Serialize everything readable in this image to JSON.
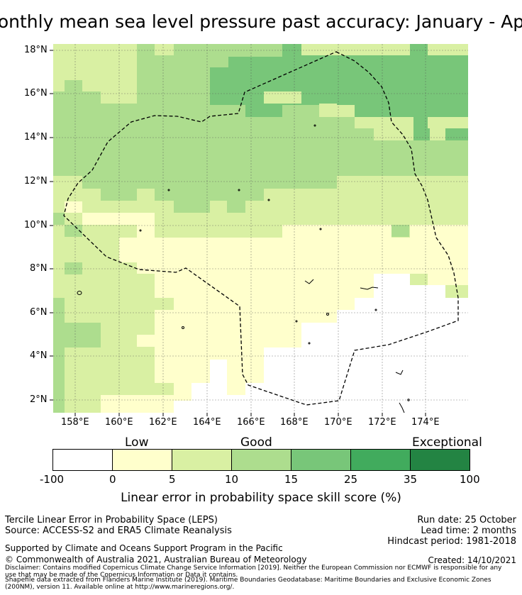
{
  "title": "onthly mean sea level pressure past accuracy: January - Ap",
  "map": {
    "lat_ticks": [
      "18°N",
      "16°N",
      "14°N",
      "12°N",
      "10°N",
      "8°N",
      "6°N",
      "4°N",
      "2°N"
    ],
    "lon_ticks": [
      "158°E",
      "160°E",
      "162°E",
      "164°E",
      "166°E",
      "168°E",
      "170°E",
      "172°E",
      "174°E"
    ],
    "region_boundary": "dashed outline of exclusive economic zone"
  },
  "colorbar": {
    "categories": [
      "Low",
      "Good",
      "Exceptional"
    ],
    "ticks": [
      "-100",
      "0",
      "5",
      "10",
      "15",
      "25",
      "35",
      "100"
    ],
    "colors": [
      "#ffffff",
      "#ffffcc",
      "#d9f0a3",
      "#addd8e",
      "#78c679",
      "#41ab5d",
      "#238443"
    ],
    "label": "Linear error in probability space skill score (%)"
  },
  "info": {
    "left_line1": "Tercile Linear Error in Probability Space (LEPS)",
    "left_line2": "Source: ACCESS-S2 and ERA5 Climate Reanalysis",
    "right_line1": "Run date: 25 October",
    "right_line2": "Lead time: 2 months",
    "right_line3": "Hindcast period: 1981-2018",
    "support": "Supported by Climate and Oceans Support Program in the Pacific",
    "copyright": "© Commonwealth of Australia 2021, Australian Bureau of Meteorology",
    "created": "Created: 14/10/2021",
    "disclaimer1": "Disclaimer: Contains modified Copernicus Climate Change Service Information [2019]. Neither the European Commission nor ECMWF is responsible for any",
    "disclaimer2": "use that may be made of the Copernicus Information or Data it contains.",
    "shapefile1": "Shapefile data extracted from Flanders Marine Institute (2019). Maritime Boundaries Geodatabase: Maritime Boundaries and Exclusive Economic Zones",
    "shapefile2": "(200NM), version 11. Available online at http://www.marineregions.org/."
  }
}
